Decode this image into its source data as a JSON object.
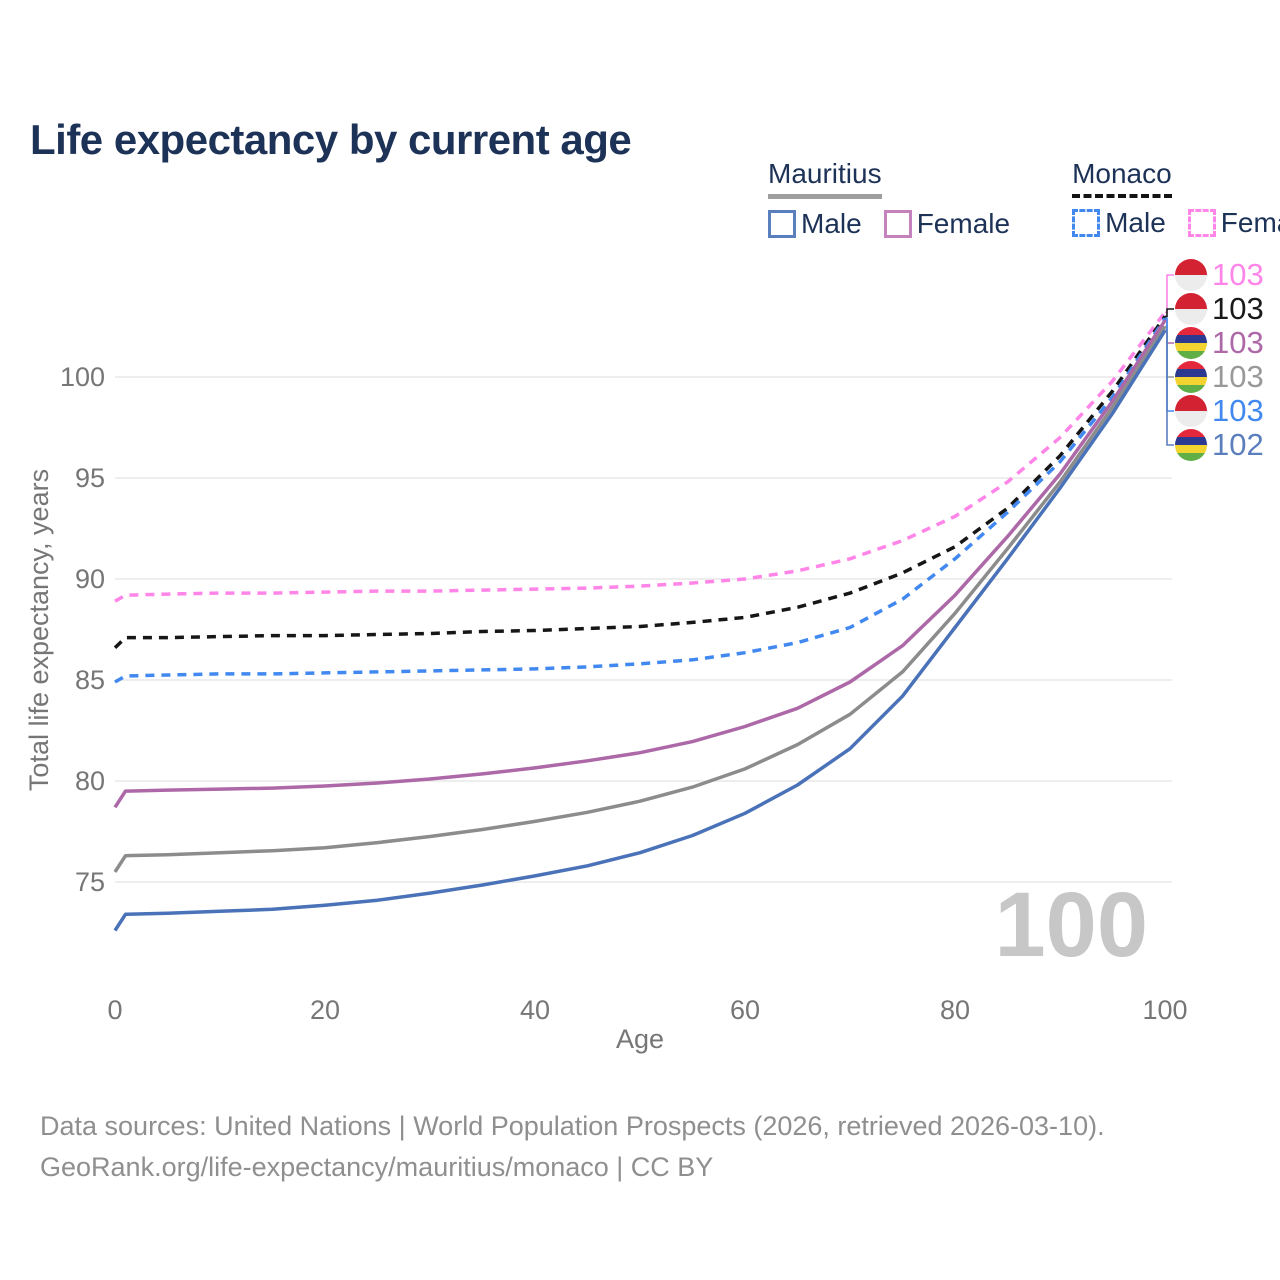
{
  "title": "Life expectancy by current age",
  "legend": {
    "groups": [
      {
        "name": "Mauritius",
        "underline": "solid",
        "items": [
          {
            "label": "Male",
            "swatch": "#5b7fbd"
          },
          {
            "label": "Female",
            "swatch": "#c583bd"
          }
        ]
      },
      {
        "name": "Monaco",
        "underline": "dashed",
        "items": [
          {
            "label": "Male",
            "swatch": "#4189f0"
          },
          {
            "label": "Female",
            "swatch": "#ff85e8"
          }
        ]
      }
    ]
  },
  "watermark": "100",
  "footer": {
    "line1": "Data sources: United Nations | World Population Prospects (2026, retrieved 2026-03-10).",
    "line2": "GeoRank.org/life-expectancy/mauritius/monaco | CC BY"
  },
  "chart_data": {
    "type": "line",
    "title": "Life expectancy by current age",
    "xlabel": "Age",
    "ylabel": "Total life expectancy, years",
    "x_ticks": [
      0,
      20,
      40,
      60,
      80,
      100
    ],
    "y_ticks": [
      75,
      80,
      85,
      90,
      95,
      100
    ],
    "xlim": [
      0,
      100
    ],
    "ylim": [
      72,
      104.5
    ],
    "grid": "horizontal",
    "ages": [
      0,
      1,
      5,
      10,
      15,
      20,
      25,
      30,
      35,
      40,
      45,
      50,
      55,
      60,
      65,
      70,
      75,
      80,
      85,
      90,
      95,
      100
    ],
    "series": [
      {
        "id": "monaco_female",
        "country": "Monaco",
        "sex": "Female",
        "style": "dashed",
        "color": "#ff85e8",
        "values": [
          88.9,
          89.2,
          89.25,
          89.3,
          89.3,
          89.35,
          89.4,
          89.4,
          89.45,
          89.5,
          89.55,
          89.65,
          89.8,
          90.0,
          90.4,
          91.0,
          91.9,
          93.1,
          94.8,
          97.0,
          99.8,
          103.2
        ]
      },
      {
        "id": "monaco_total",
        "country": "Monaco",
        "sex": "Both",
        "style": "dashed",
        "color": "#161616",
        "values": [
          86.6,
          87.1,
          87.1,
          87.15,
          87.2,
          87.2,
          87.25,
          87.3,
          87.4,
          87.45,
          87.55,
          87.65,
          87.85,
          88.1,
          88.6,
          89.3,
          90.3,
          91.6,
          93.5,
          96.1,
          99.3,
          103.0
        ]
      },
      {
        "id": "monaco_male",
        "country": "Monaco",
        "sex": "Male",
        "style": "dashed",
        "color": "#4189f0",
        "values": [
          84.9,
          85.2,
          85.25,
          85.3,
          85.3,
          85.35,
          85.4,
          85.45,
          85.5,
          85.55,
          85.65,
          85.8,
          86.0,
          86.35,
          86.85,
          87.6,
          89.0,
          91.0,
          93.3,
          95.8,
          99.0,
          102.9
        ]
      },
      {
        "id": "mauritius_female",
        "country": "Mauritius",
        "sex": "Female",
        "style": "solid",
        "color": "#ad68a8",
        "values": [
          78.7,
          79.5,
          79.55,
          79.6,
          79.65,
          79.75,
          79.9,
          80.1,
          80.35,
          80.65,
          81.0,
          81.4,
          81.95,
          82.7,
          83.6,
          84.9,
          86.7,
          89.2,
          92.1,
          95.2,
          98.8,
          102.8
        ]
      },
      {
        "id": "mauritius_total",
        "country": "Mauritius",
        "sex": "Both",
        "style": "solid",
        "color": "#8c8c8c",
        "values": [
          75.5,
          76.3,
          76.35,
          76.45,
          76.55,
          76.7,
          76.95,
          77.25,
          77.6,
          78.0,
          78.45,
          79.0,
          79.7,
          80.6,
          81.8,
          83.3,
          85.4,
          88.3,
          91.5,
          94.8,
          98.5,
          102.5
        ]
      },
      {
        "id": "mauritius_male",
        "country": "Mauritius",
        "sex": "Male",
        "style": "solid",
        "color": "#4a72b8",
        "values": [
          72.6,
          73.4,
          73.45,
          73.55,
          73.65,
          73.85,
          74.1,
          74.45,
          74.85,
          75.3,
          75.8,
          76.45,
          77.3,
          78.4,
          79.8,
          81.6,
          84.2,
          87.6,
          91.0,
          94.5,
          98.2,
          102.3
        ]
      }
    ],
    "end_labels": [
      {
        "series": "monaco_female",
        "flag": "monaco",
        "value": 103,
        "color": "#ff85e8"
      },
      {
        "series": "monaco_total",
        "flag": "monaco",
        "value": 103,
        "color": "#1a1a1a"
      },
      {
        "series": "mauritius_female",
        "flag": "mauritius",
        "value": 103,
        "color": "#ad68a8"
      },
      {
        "series": "mauritius_total",
        "flag": "mauritius",
        "value": 103,
        "color": "#999999"
      },
      {
        "series": "monaco_male",
        "flag": "monaco",
        "value": 103,
        "color": "#4189f0"
      },
      {
        "series": "mauritius_male",
        "flag": "mauritius",
        "value": 102,
        "color": "#5b7fbd"
      }
    ],
    "flag_colors": {
      "monaco": [
        "#d32332",
        "#ececec"
      ],
      "mauritius": [
        "#e4283c",
        "#2b3990",
        "#f2d32f",
        "#5fae46"
      ]
    }
  }
}
